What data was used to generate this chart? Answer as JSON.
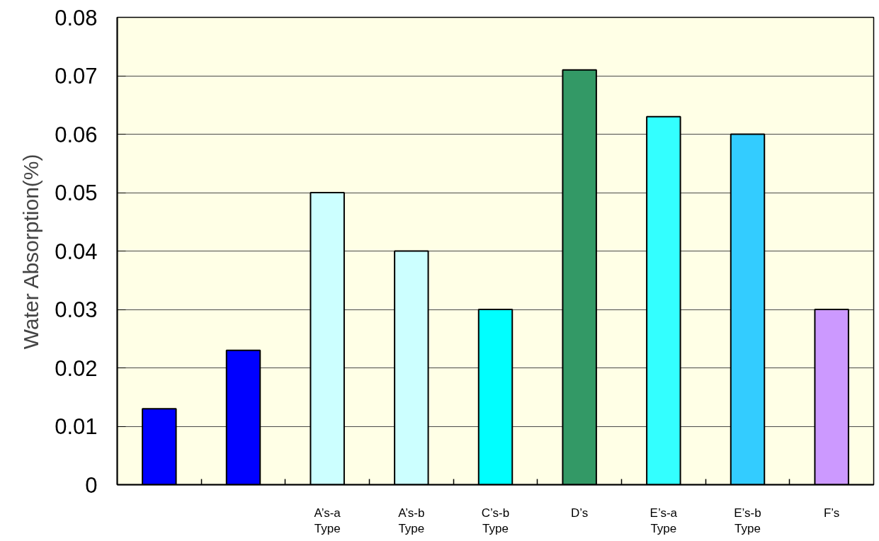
{
  "chart_data": {
    "type": "bar",
    "ylabel": "Water Absorption(%)",
    "categories": [
      null,
      null,
      "A’s-a\nType",
      "A’s-b\nType",
      "C’s-b\nType",
      "D’s",
      "E’s-a\nType",
      "E’s-b\nType",
      "F’s"
    ],
    "values": [
      0.013,
      0.023,
      0.05,
      0.04,
      0.03,
      0.071,
      0.063,
      0.06,
      0.03
    ],
    "colors": [
      "#0000ff",
      "#0000ff",
      "#ccffff",
      "#ccffff",
      "#00ffff",
      "#339966",
      "#33ffff",
      "#33ccff",
      "#cc99ff"
    ],
    "ylim": [
      0,
      0.08
    ],
    "yticks": [
      0,
      0.01,
      0.02,
      0.03,
      0.04,
      0.05,
      0.06,
      0.07,
      0.08
    ],
    "grid": "y"
  }
}
